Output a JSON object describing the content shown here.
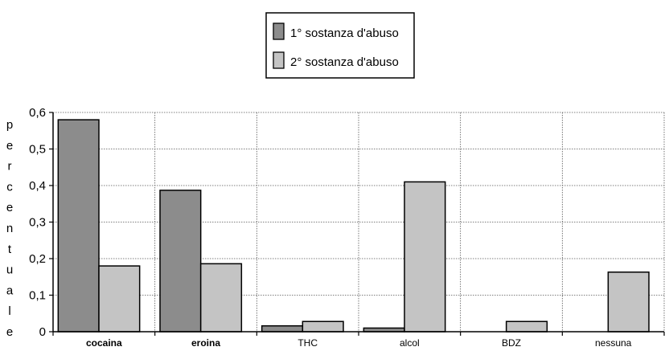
{
  "chart_data": {
    "type": "bar",
    "title": "",
    "xlabel": "",
    "ylabel": "percentuale",
    "ylim": [
      0,
      0.6
    ],
    "yticks": [
      "0",
      "0,1",
      "0,2",
      "0,3",
      "0,4",
      "0,5",
      "0,6"
    ],
    "categories": [
      "cocaina",
      "eroina",
      "THC",
      "alcol",
      "BDZ",
      "nessuna"
    ],
    "bold_categories": [
      "cocaina",
      "eroina"
    ],
    "series": [
      {
        "name": "1° sostanza d'abuso",
        "color": "#8c8c8c",
        "values": [
          0.58,
          0.387,
          0.016,
          0.01,
          0,
          0
        ]
      },
      {
        "name": "2° sostanza d'abuso",
        "color": "#c4c4c4",
        "values": [
          0.18,
          0.186,
          0.028,
          0.41,
          0.028,
          0.163
        ]
      }
    ],
    "grid": true,
    "legend_position": "top-center"
  }
}
